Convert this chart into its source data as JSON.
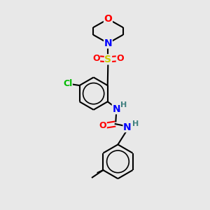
{
  "bg_color": "#e8e8e8",
  "atom_colors": {
    "O": "#ff0000",
    "N": "#0000ff",
    "S": "#cccc00",
    "Cl": "#00bb00",
    "C": "#000000",
    "H": "#408080"
  },
  "bond_color": "#000000",
  "bond_width": 1.5,
  "font_size": 9,
  "figsize": [
    3.0,
    3.0
  ],
  "dpi": 100
}
